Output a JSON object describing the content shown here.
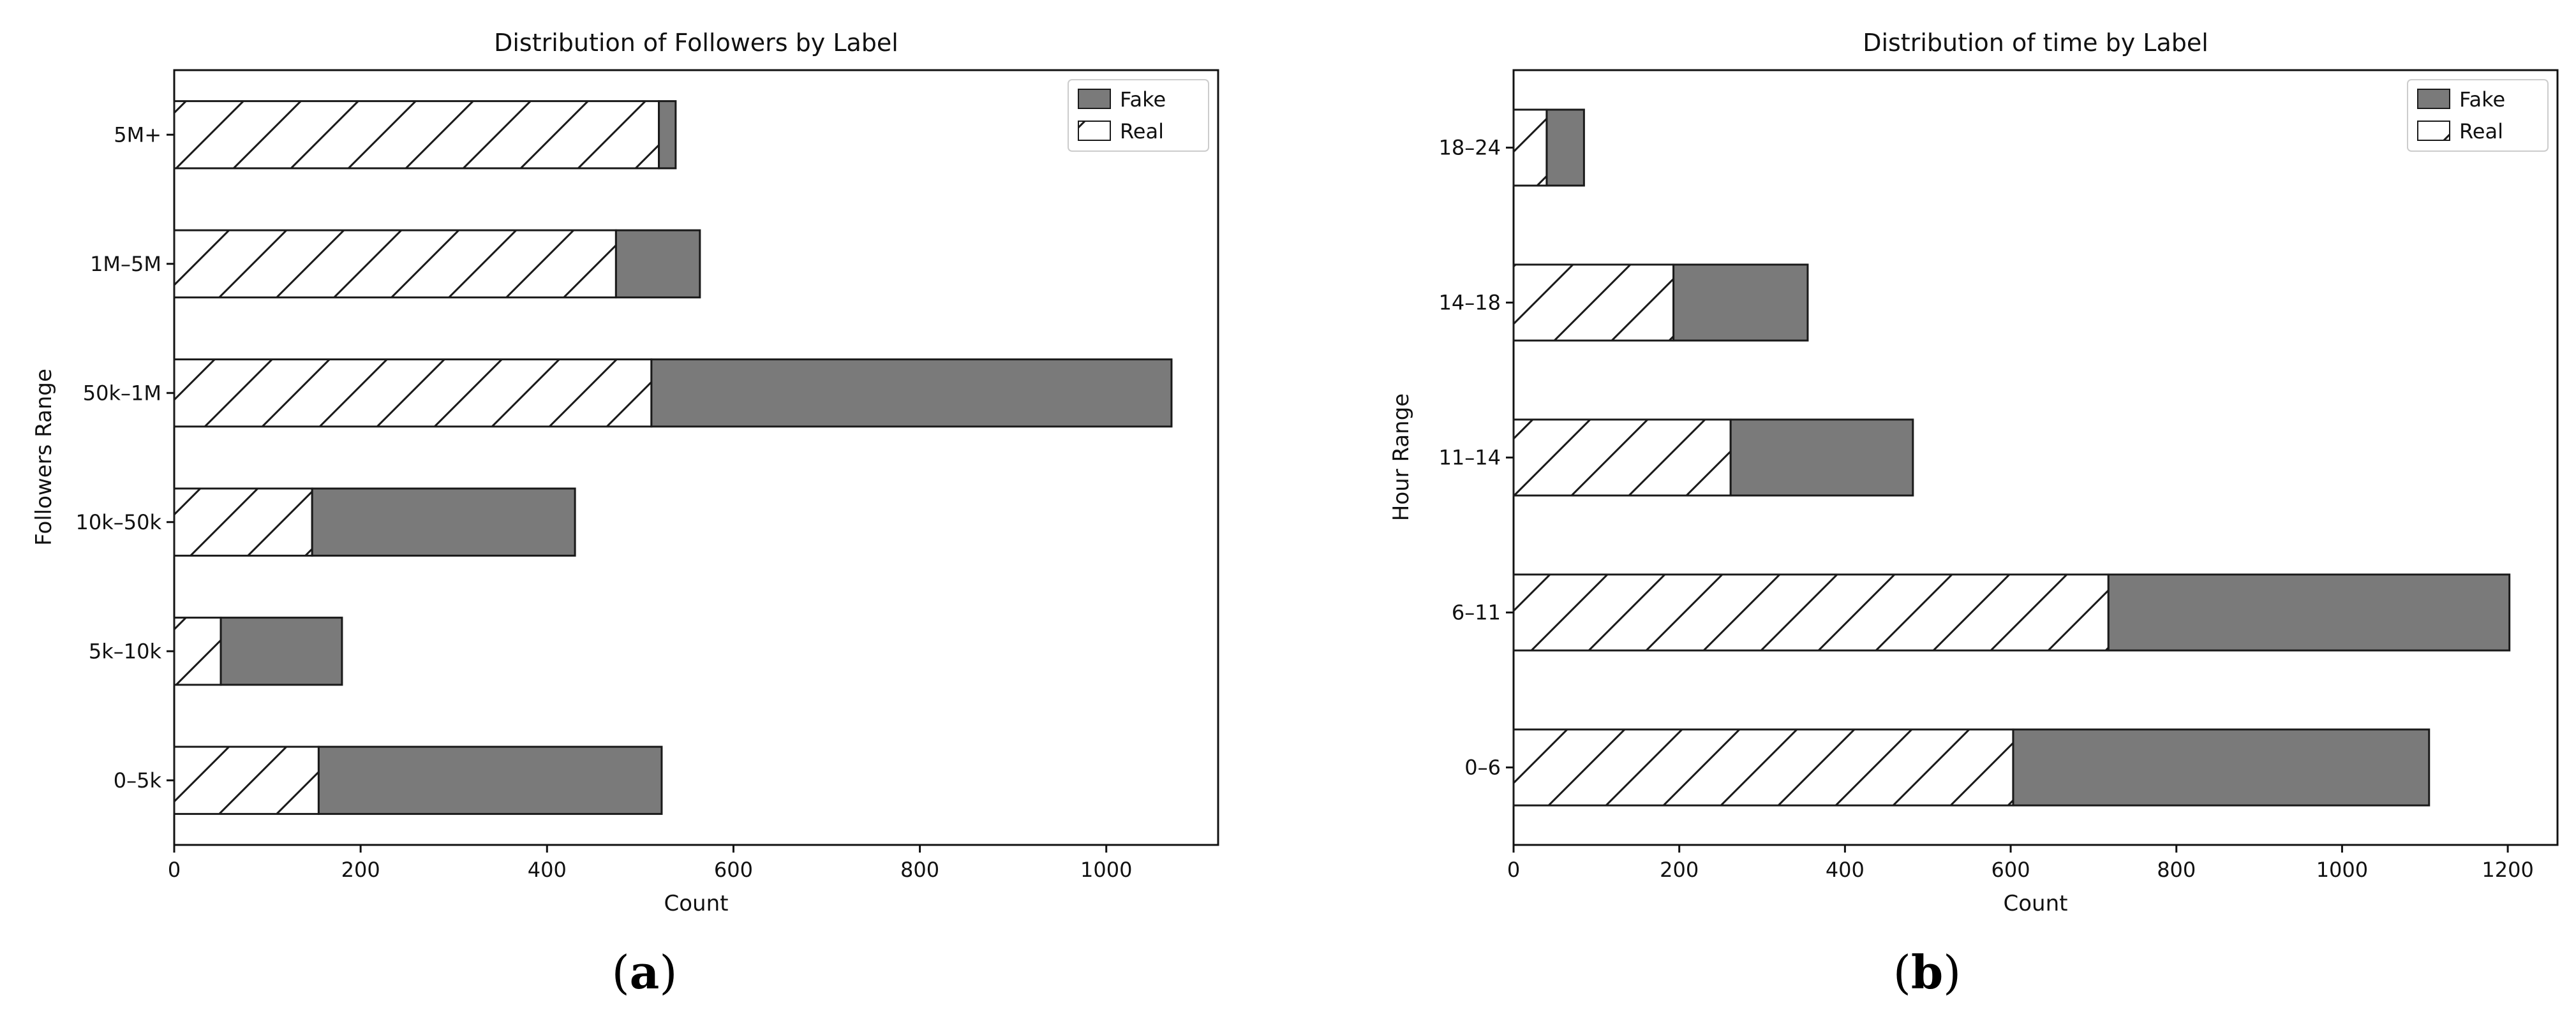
{
  "figure": {
    "captions": [
      {
        "open": "(",
        "letter": "a",
        "close": ")"
      },
      {
        "open": "(",
        "letter": "b",
        "close": ")"
      }
    ]
  },
  "colors": {
    "fake": "#7a7a7a",
    "real": "#ffffff",
    "edge": "#1a1a1a"
  },
  "chart_data": [
    {
      "type": "bar",
      "orientation": "horizontal",
      "stacked": true,
      "title": "Distribution of Followers by Label",
      "xlabel": "Count",
      "ylabel": "Followers Range",
      "categories": [
        "0–5k",
        "5k–10k",
        "10k–50k",
        "50k–1M",
        "1M–5M",
        "5M+"
      ],
      "series": [
        {
          "name": "Real",
          "values": [
            155,
            50,
            148,
            512,
            474,
            520
          ],
          "pattern": "hatch"
        },
        {
          "name": "Fake",
          "values": [
            368,
            130,
            282,
            558,
            90,
            18
          ],
          "pattern": "solid"
        }
      ],
      "xlim": [
        0,
        1120
      ],
      "xticks": [
        0,
        200,
        400,
        600,
        800,
        1000
      ],
      "legend": {
        "position": "top-right",
        "entries": [
          "Fake",
          "Real"
        ]
      },
      "grid": false
    },
    {
      "type": "bar",
      "orientation": "horizontal",
      "stacked": true,
      "title": "Distribution of time by Label",
      "xlabel": "Count",
      "ylabel": "Hour Range",
      "categories": [
        "0–6",
        "6–11",
        "11–14",
        "14–18",
        "18–24"
      ],
      "series": [
        {
          "name": "Real",
          "values": [
            603,
            718,
            262,
            193,
            40
          ],
          "pattern": "hatch"
        },
        {
          "name": "Fake",
          "values": [
            502,
            484,
            220,
            162,
            45
          ],
          "pattern": "solid"
        }
      ],
      "xlim": [
        0,
        1260
      ],
      "xticks": [
        0,
        200,
        400,
        600,
        800,
        1000,
        1200
      ],
      "legend": {
        "position": "top-right",
        "entries": [
          "Fake",
          "Real"
        ]
      },
      "grid": false
    }
  ]
}
